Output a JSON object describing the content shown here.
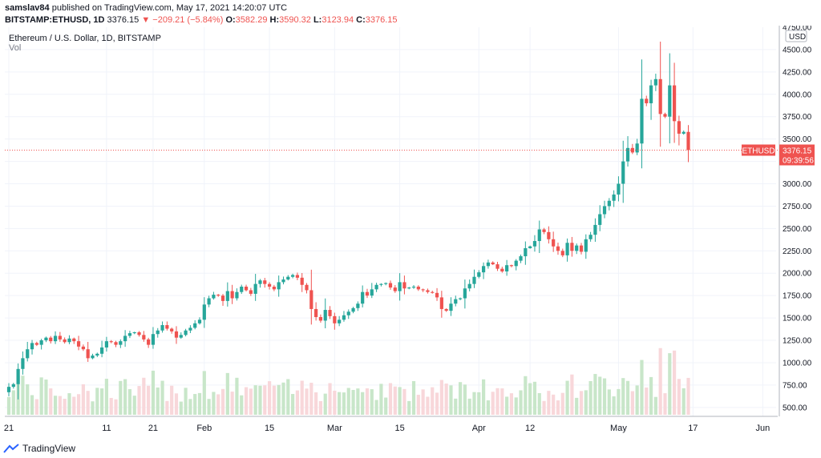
{
  "header": {
    "user": "samslav84",
    "published": "published on TradingView.com, May 17, 2021 14:20:07 UTC",
    "symbol": "BITSTAMP:ETHUSD, 1D",
    "last": "3376.15",
    "change": "▼ −209.21 (−5.84%)",
    "o_label": "O:",
    "o_value": "3582.29",
    "h_label": "H:",
    "h_value": "3590.32",
    "l_label": "L:",
    "l_value": "3123.94",
    "c_label": "C:",
    "c_value": "3376.15"
  },
  "legend": {
    "title": "Ethereum / U.S. Dollar, 1D, BITSTAMP",
    "vol": "Vol"
  },
  "price_tag": {
    "symbol": "ETHUSD",
    "price": "3376.15",
    "countdown": "09:39:56"
  },
  "footer": {
    "brand": "TradingView"
  },
  "colors": {
    "up": "#26a69a",
    "down": "#ef5350",
    "vol_up": "#c8e6c9",
    "vol_down": "#f8d7da",
    "grid": "#f0f3fa",
    "axis_text": "#131722",
    "price_line": "#ef5350"
  },
  "chart_data": {
    "type": "candlestick",
    "title": "Ethereum / U.S. Dollar, 1D, BITSTAMP",
    "currency_label": "USD",
    "ylim": [
      400,
      4750
    ],
    "y_ticks": [
      "500.00",
      "750.00",
      "1000.00",
      "1250.00",
      "1500.00",
      "1750.00",
      "2000.00",
      "2250.00",
      "2500.00",
      "2750.00",
      "3000.00",
      "3250.00",
      "3500.00",
      "3750.00",
      "4000.00",
      "4250.00",
      "4500.00"
    ],
    "y_top_label": "4750.00",
    "x_ticks": [
      {
        "label": "21",
        "day": 0
      },
      {
        "label": "11",
        "day": 21
      },
      {
        "label": "21",
        "day": 31
      },
      {
        "label": "Feb",
        "day": 42
      },
      {
        "label": "15",
        "day": 56
      },
      {
        "label": "Mar",
        "day": 70
      },
      {
        "label": "15",
        "day": 84
      },
      {
        "label": "Apr",
        "day": 101
      },
      {
        "label": "12",
        "day": 112
      },
      {
        "label": "May",
        "day": 131
      },
      {
        "label": "17",
        "day": 147
      },
      {
        "label": "Jun",
        "day": 162
      }
    ],
    "x_range_days": [
      0,
      164
    ],
    "last_price": 3376.15,
    "volume_axis_max": 1.0,
    "closes": [
      730,
      760,
      930,
      1050,
      1150,
      1220,
      1200,
      1250,
      1280,
      1240,
      1300,
      1260,
      1230,
      1270,
      1240,
      1180,
      1150,
      1050,
      1080,
      1100,
      1170,
      1240,
      1230,
      1200,
      1240,
      1300,
      1330,
      1340,
      1310,
      1260,
      1200,
      1320,
      1360,
      1420,
      1380,
      1350,
      1280,
      1310,
      1360,
      1390,
      1440,
      1480,
      1650,
      1720,
      1760,
      1750,
      1690,
      1800,
      1720,
      1790,
      1850,
      1810,
      1770,
      1880,
      1920,
      1880,
      1850,
      1820,
      1900,
      1930,
      1960,
      1980,
      1950,
      1870,
      1810,
      1600,
      1510,
      1470,
      1590,
      1520,
      1440,
      1480,
      1530,
      1570,
      1610,
      1660,
      1790,
      1750,
      1820,
      1870,
      1880,
      1890,
      1840,
      1800,
      1900,
      1830,
      1840,
      1850,
      1820,
      1810,
      1790,
      1780,
      1730,
      1600,
      1580,
      1660,
      1710,
      1720,
      1830,
      1880,
      1960,
      2010,
      2080,
      2120,
      2100,
      2050,
      2020,
      2090,
      2080,
      2140,
      2190,
      2280,
      2300,
      2360,
      2490,
      2460,
      2380,
      2300,
      2250,
      2200,
      2340,
      2250,
      2310,
      2240,
      2380,
      2430,
      2540,
      2660,
      2750,
      2810,
      2880,
      3000,
      3250,
      3400,
      3350,
      3450,
      3950,
      3900,
      4100,
      4170,
      3780,
      3750,
      4100,
      3700,
      3560,
      3580,
      3376.15
    ]
  }
}
